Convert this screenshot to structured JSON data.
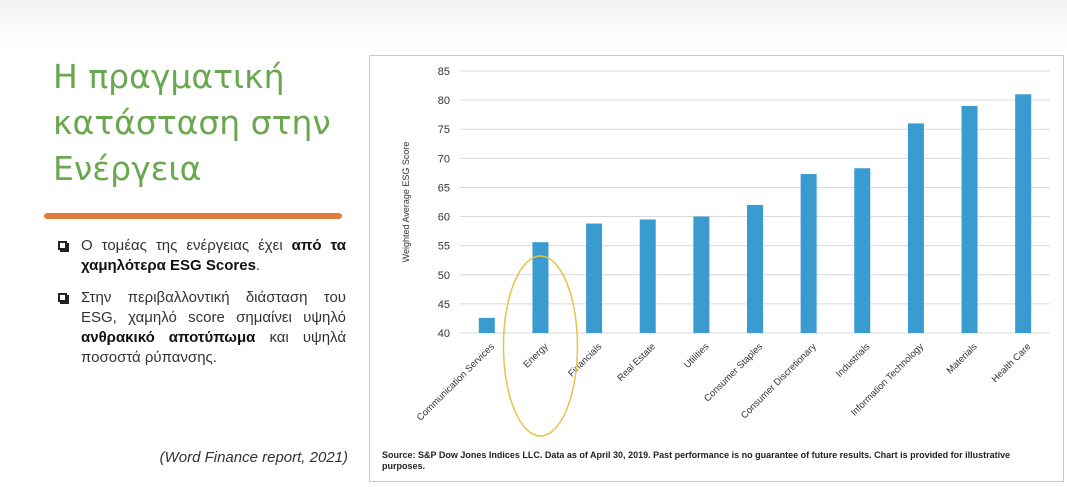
{
  "slide": {
    "title_lines": [
      "Η πραγματική",
      "κατάσταση στην",
      "Ενέργεια"
    ],
    "bullets": [
      {
        "pre": "Ο τομέας της ενέργειας έχει ",
        "bold": "από τα χαμηλότερα ESG Scores",
        "post": "."
      },
      {
        "pre": "Στην περιβαλλοντική διάσταση του ESG, χαμηλό score σημαίνει υψηλό ",
        "bold": "ανθρακικό αποτύπωμα",
        "post": " και υψηλά ποσοστά ρύπανσης."
      }
    ],
    "citation": "(Word Finance report, 2021)"
  },
  "chart_data": {
    "type": "bar",
    "ylabel": "Weighted Average ESG Score",
    "xlabel": "",
    "ylim": [
      40,
      85
    ],
    "yticks": [
      40,
      45,
      50,
      55,
      60,
      65,
      70,
      75,
      80,
      85
    ],
    "grid": true,
    "bar_color": "#3a9bd0",
    "highlight_color": "#e8c24a",
    "highlight_category": "Energy",
    "categories": [
      "Communication Services",
      "Energy",
      "Financials",
      "Real Estate",
      "Utilities",
      "Consumer Staples",
      "Consumer Discretionary",
      "Industrials",
      "Information Technology",
      "Materials",
      "Health Care"
    ],
    "values": [
      42.6,
      55.6,
      58.8,
      59.5,
      60.0,
      62.0,
      67.3,
      68.3,
      76.0,
      79.0,
      81.0
    ],
    "source": "Source: S&P Dow Jones Indices LLC. Data as of April 30, 2019. Past performance is no guarantee of future results. Chart is provided for illustrative purposes."
  }
}
